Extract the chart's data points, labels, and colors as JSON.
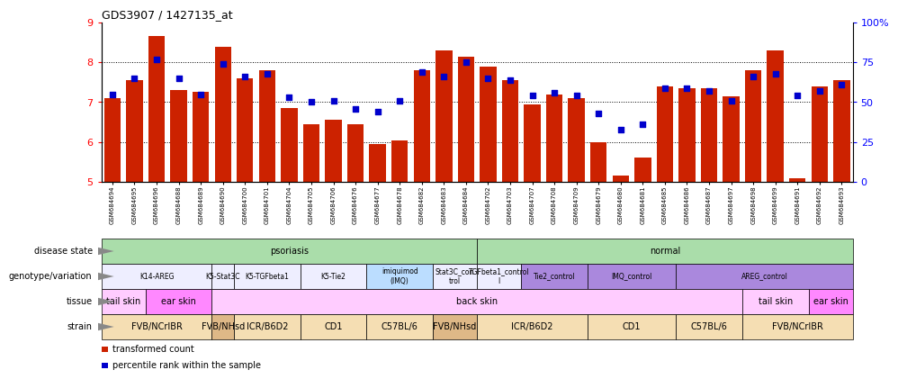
{
  "title": "GDS3907 / 1427135_at",
  "samples": [
    "GSM684694",
    "GSM684695",
    "GSM684696",
    "GSM684688",
    "GSM684689",
    "GSM684690",
    "GSM684700",
    "GSM684701",
    "GSM684704",
    "GSM684705",
    "GSM684706",
    "GSM684676",
    "GSM684677",
    "GSM684678",
    "GSM684682",
    "GSM684683",
    "GSM684684",
    "GSM684702",
    "GSM684703",
    "GSM684707",
    "GSM684708",
    "GSM684709",
    "GSM684679",
    "GSM684680",
    "GSM684681",
    "GSM684685",
    "GSM684686",
    "GSM684687",
    "GSM684697",
    "GSM684698",
    "GSM684699",
    "GSM684691",
    "GSM684692",
    "GSM684693"
  ],
  "bar_values": [
    7.1,
    7.55,
    8.65,
    7.3,
    7.25,
    8.4,
    7.6,
    7.8,
    6.85,
    6.45,
    6.55,
    6.45,
    5.95,
    6.05,
    7.8,
    8.3,
    8.15,
    7.9,
    7.55,
    6.95,
    7.2,
    7.1,
    6.0,
    5.15,
    5.6,
    7.4,
    7.35,
    7.35,
    7.15,
    7.8,
    8.3,
    5.1,
    7.4,
    7.55
  ],
  "dot_pct": [
    55,
    65,
    77,
    65,
    55,
    74,
    66,
    68,
    53,
    50,
    51,
    46,
    44,
    51,
    69,
    66,
    75,
    65,
    64,
    54,
    56,
    54,
    43,
    33,
    36,
    59,
    59,
    57,
    51,
    66,
    68,
    54,
    57,
    61
  ],
  "ylim_left": [
    5,
    9
  ],
  "yticks_left": [
    5,
    6,
    7,
    8,
    9
  ],
  "ylim_right": [
    0,
    100
  ],
  "yticks_right": [
    0,
    25,
    50,
    75,
    100
  ],
  "yticklabels_right": [
    "0",
    "25",
    "50",
    "75",
    "100%"
  ],
  "bar_color": "#cc2200",
  "dot_color": "#0000cc",
  "disease_state": [
    {
      "text": "psoriasis",
      "start": 0,
      "end": 16,
      "color": "#aaddaa"
    },
    {
      "text": "normal",
      "start": 17,
      "end": 33,
      "color": "#aaddaa"
    }
  ],
  "genotype": [
    {
      "text": "K14-AREG",
      "start": 0,
      "end": 4,
      "color": "#eeeeff"
    },
    {
      "text": "K5-Stat3C",
      "start": 5,
      "end": 5,
      "color": "#eeeeff"
    },
    {
      "text": "K5-TGFbeta1",
      "start": 6,
      "end": 8,
      "color": "#eeeeff"
    },
    {
      "text": "K5-Tie2",
      "start": 9,
      "end": 11,
      "color": "#eeeeff"
    },
    {
      "text": "imiquimod\n(IMQ)",
      "start": 12,
      "end": 14,
      "color": "#bbddff"
    },
    {
      "text": "Stat3C_con\ntrol",
      "start": 15,
      "end": 16,
      "color": "#eeeeff"
    },
    {
      "text": "TGFbeta1_control\nl",
      "start": 17,
      "end": 18,
      "color": "#eeeeff"
    },
    {
      "text": "Tie2_control",
      "start": 19,
      "end": 21,
      "color": "#aa88dd"
    },
    {
      "text": "IMQ_control",
      "start": 22,
      "end": 25,
      "color": "#aa88dd"
    },
    {
      "text": "AREG_control",
      "start": 26,
      "end": 33,
      "color": "#aa88dd"
    }
  ],
  "tissue": [
    {
      "text": "tail skin",
      "start": 0,
      "end": 1,
      "color": "#ffccff"
    },
    {
      "text": "ear skin",
      "start": 2,
      "end": 4,
      "color": "#ff88ff"
    },
    {
      "text": "back skin",
      "start": 5,
      "end": 28,
      "color": "#ffccff"
    },
    {
      "text": "tail skin",
      "start": 29,
      "end": 31,
      "color": "#ffccff"
    },
    {
      "text": "ear skin",
      "start": 32,
      "end": 33,
      "color": "#ff88ff"
    }
  ],
  "strain": [
    {
      "text": "FVB/NCrIBR",
      "start": 0,
      "end": 4,
      "color": "#f5deb3"
    },
    {
      "text": "FVB/NHsd",
      "start": 5,
      "end": 5,
      "color": "#deb887"
    },
    {
      "text": "ICR/B6D2",
      "start": 6,
      "end": 8,
      "color": "#f5deb3"
    },
    {
      "text": "CD1",
      "start": 9,
      "end": 11,
      "color": "#f5deb3"
    },
    {
      "text": "C57BL/6",
      "start": 12,
      "end": 14,
      "color": "#f5deb3"
    },
    {
      "text": "FVB/NHsd",
      "start": 15,
      "end": 16,
      "color": "#deb887"
    },
    {
      "text": "ICR/B6D2",
      "start": 17,
      "end": 21,
      "color": "#f5deb3"
    },
    {
      "text": "CD1",
      "start": 22,
      "end": 25,
      "color": "#f5deb3"
    },
    {
      "text": "C57BL/6",
      "start": 26,
      "end": 28,
      "color": "#f5deb3"
    },
    {
      "text": "FVB/NCrIBR",
      "start": 29,
      "end": 33,
      "color": "#f5deb3"
    }
  ],
  "row_labels": [
    "disease state",
    "genotype/variation",
    "tissue",
    "strain"
  ],
  "legend": [
    {
      "color": "#cc2200",
      "label": "transformed count"
    },
    {
      "color": "#0000cc",
      "label": "percentile rank within the sample"
    }
  ]
}
